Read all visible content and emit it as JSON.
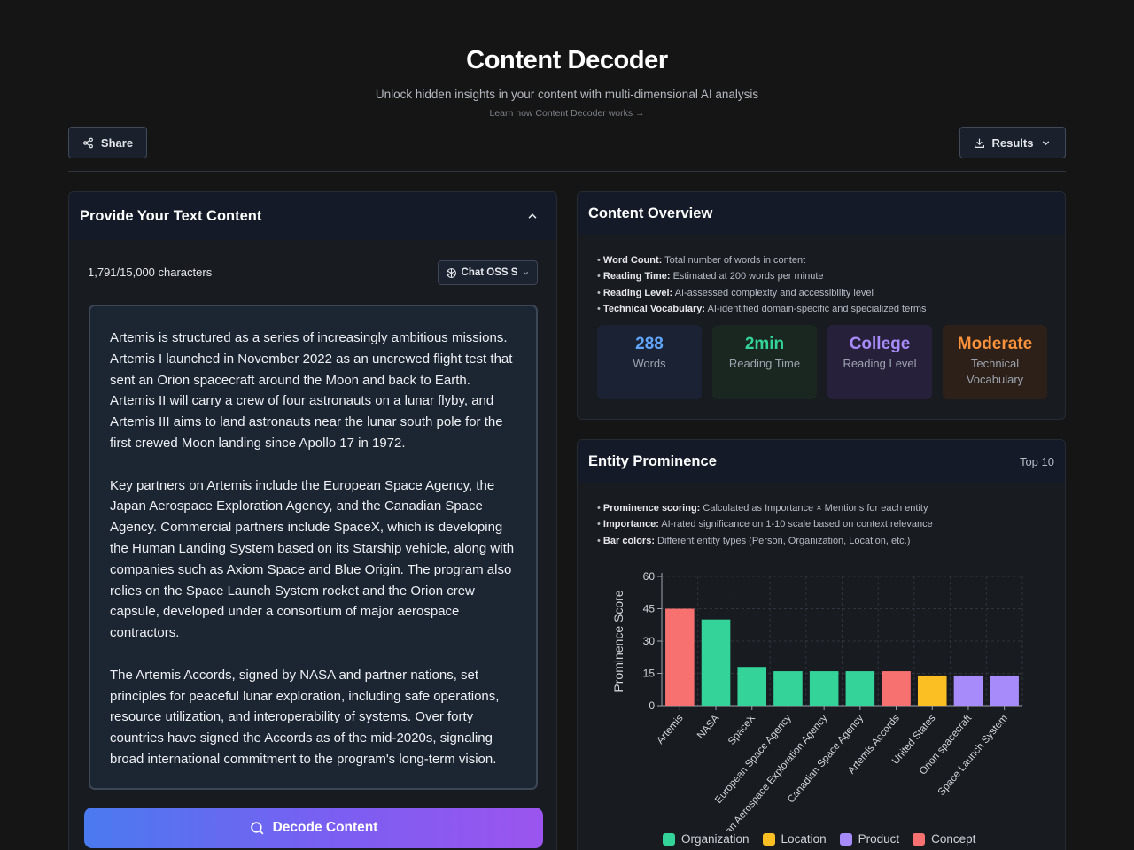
{
  "header": {
    "title": "Content Decoder",
    "subtitle": "Unlock hidden insights in your content with multi-dimensional AI analysis",
    "learn_link": "Learn how Content Decoder works →"
  },
  "toolbar": {
    "share_label": "Share",
    "results_label": "Results"
  },
  "input_panel": {
    "title": "Provide Your Text Content",
    "char_count": "1,791/15,000 characters",
    "model_label": "Chat OSS S",
    "paragraphs": [
      "Artemis is structured as a series of increasingly ambitious missions. Artemis I launched in November 2022 as an uncrewed flight test that sent an Orion spacecraft around the Moon and back to Earth. Artemis II will carry a crew of four astronauts on a lunar flyby, and Artemis III aims to land astronauts near the lunar south pole for the first crewed Moon landing since Apollo 17 in 1972.",
      "Key partners on Artemis include the European Space Agency, the Japan Aerospace Exploration Agency, and the Canadian Space Agency. Commercial partners include SpaceX, which is developing the Human Landing System based on its Starship vehicle, along with companies such as Axiom Space and Blue Origin. The program also relies on the Space Launch System rocket and the Orion crew capsule, developed under a consortium of major aerospace contractors.",
      "The Artemis Accords, signed by NASA and partner nations, set principles for peaceful lunar exploration, including safe operations, resource utilization, and interoperability of systems. Over forty countries have signed the Accords as of the mid-2020s, signaling broad international commitment to the program's long-term vision."
    ],
    "decode_label": "Decode Content"
  },
  "overview": {
    "title": "Content Overview",
    "bullets": [
      {
        "term": "Word Count:",
        "desc": " Total number of words in content"
      },
      {
        "term": "Reading Time:",
        "desc": " Estimated at 200 words per minute"
      },
      {
        "term": "Reading Level:",
        "desc": " AI-assessed complexity and accessibility level"
      },
      {
        "term": "Technical Vocabulary:",
        "desc": " AI-identified domain-specific and specialized terms"
      }
    ],
    "stats": [
      {
        "value": "288",
        "label": "Words",
        "color": "#60a5fa",
        "bg": "#1b2233"
      },
      {
        "value": "2min",
        "label": "Reading Time",
        "color": "#34d399",
        "bg": "#1a2620"
      },
      {
        "value": "College",
        "label": "Reading Level",
        "color": "#a78bfa",
        "bg": "#27203a"
      },
      {
        "value": "Moderate",
        "label": "Technical Vocabulary",
        "color": "#fb923c",
        "bg": "#2c2018"
      }
    ]
  },
  "entities": {
    "title": "Entity Prominence",
    "top_label": "Top 10",
    "bullets": [
      {
        "term": "Prominence scoring:",
        "desc": " Calculated as Importance × Mentions for each entity"
      },
      {
        "term": "Importance:",
        "desc": " AI-rated significance on 1-10 scale based on context relevance"
      },
      {
        "term": "Bar colors:",
        "desc": " Different entity types (Person, Organization, Location, etc.)"
      }
    ],
    "legend": [
      {
        "label": "Organization",
        "color": "#34d399"
      },
      {
        "label": "Location",
        "color": "#fbbf24"
      },
      {
        "label": "Product",
        "color": "#a78bfa"
      },
      {
        "label": "Concept",
        "color": "#f87171"
      }
    ]
  },
  "chart_data": {
    "type": "bar",
    "title": "",
    "xlabel": "",
    "ylabel": "Prominence Score",
    "ylim": [
      0,
      60
    ],
    "yticks": [
      0,
      15,
      30,
      45,
      60
    ],
    "grid": true,
    "categories": [
      "Artemis",
      "NASA",
      "SpaceX",
      "European Space Agency",
      "Japan Aerospace Exploration Agency",
      "Canadian Space Agency",
      "Artemis Accords",
      "United States",
      "Orion spacecraft",
      "Space Launch System"
    ],
    "values": [
      45,
      40,
      18,
      16,
      16,
      16,
      16,
      14,
      14,
      14
    ],
    "colors": [
      "#f87171",
      "#34d399",
      "#34d399",
      "#34d399",
      "#34d399",
      "#34d399",
      "#f87171",
      "#fbbf24",
      "#a78bfa",
      "#a78bfa"
    ]
  }
}
